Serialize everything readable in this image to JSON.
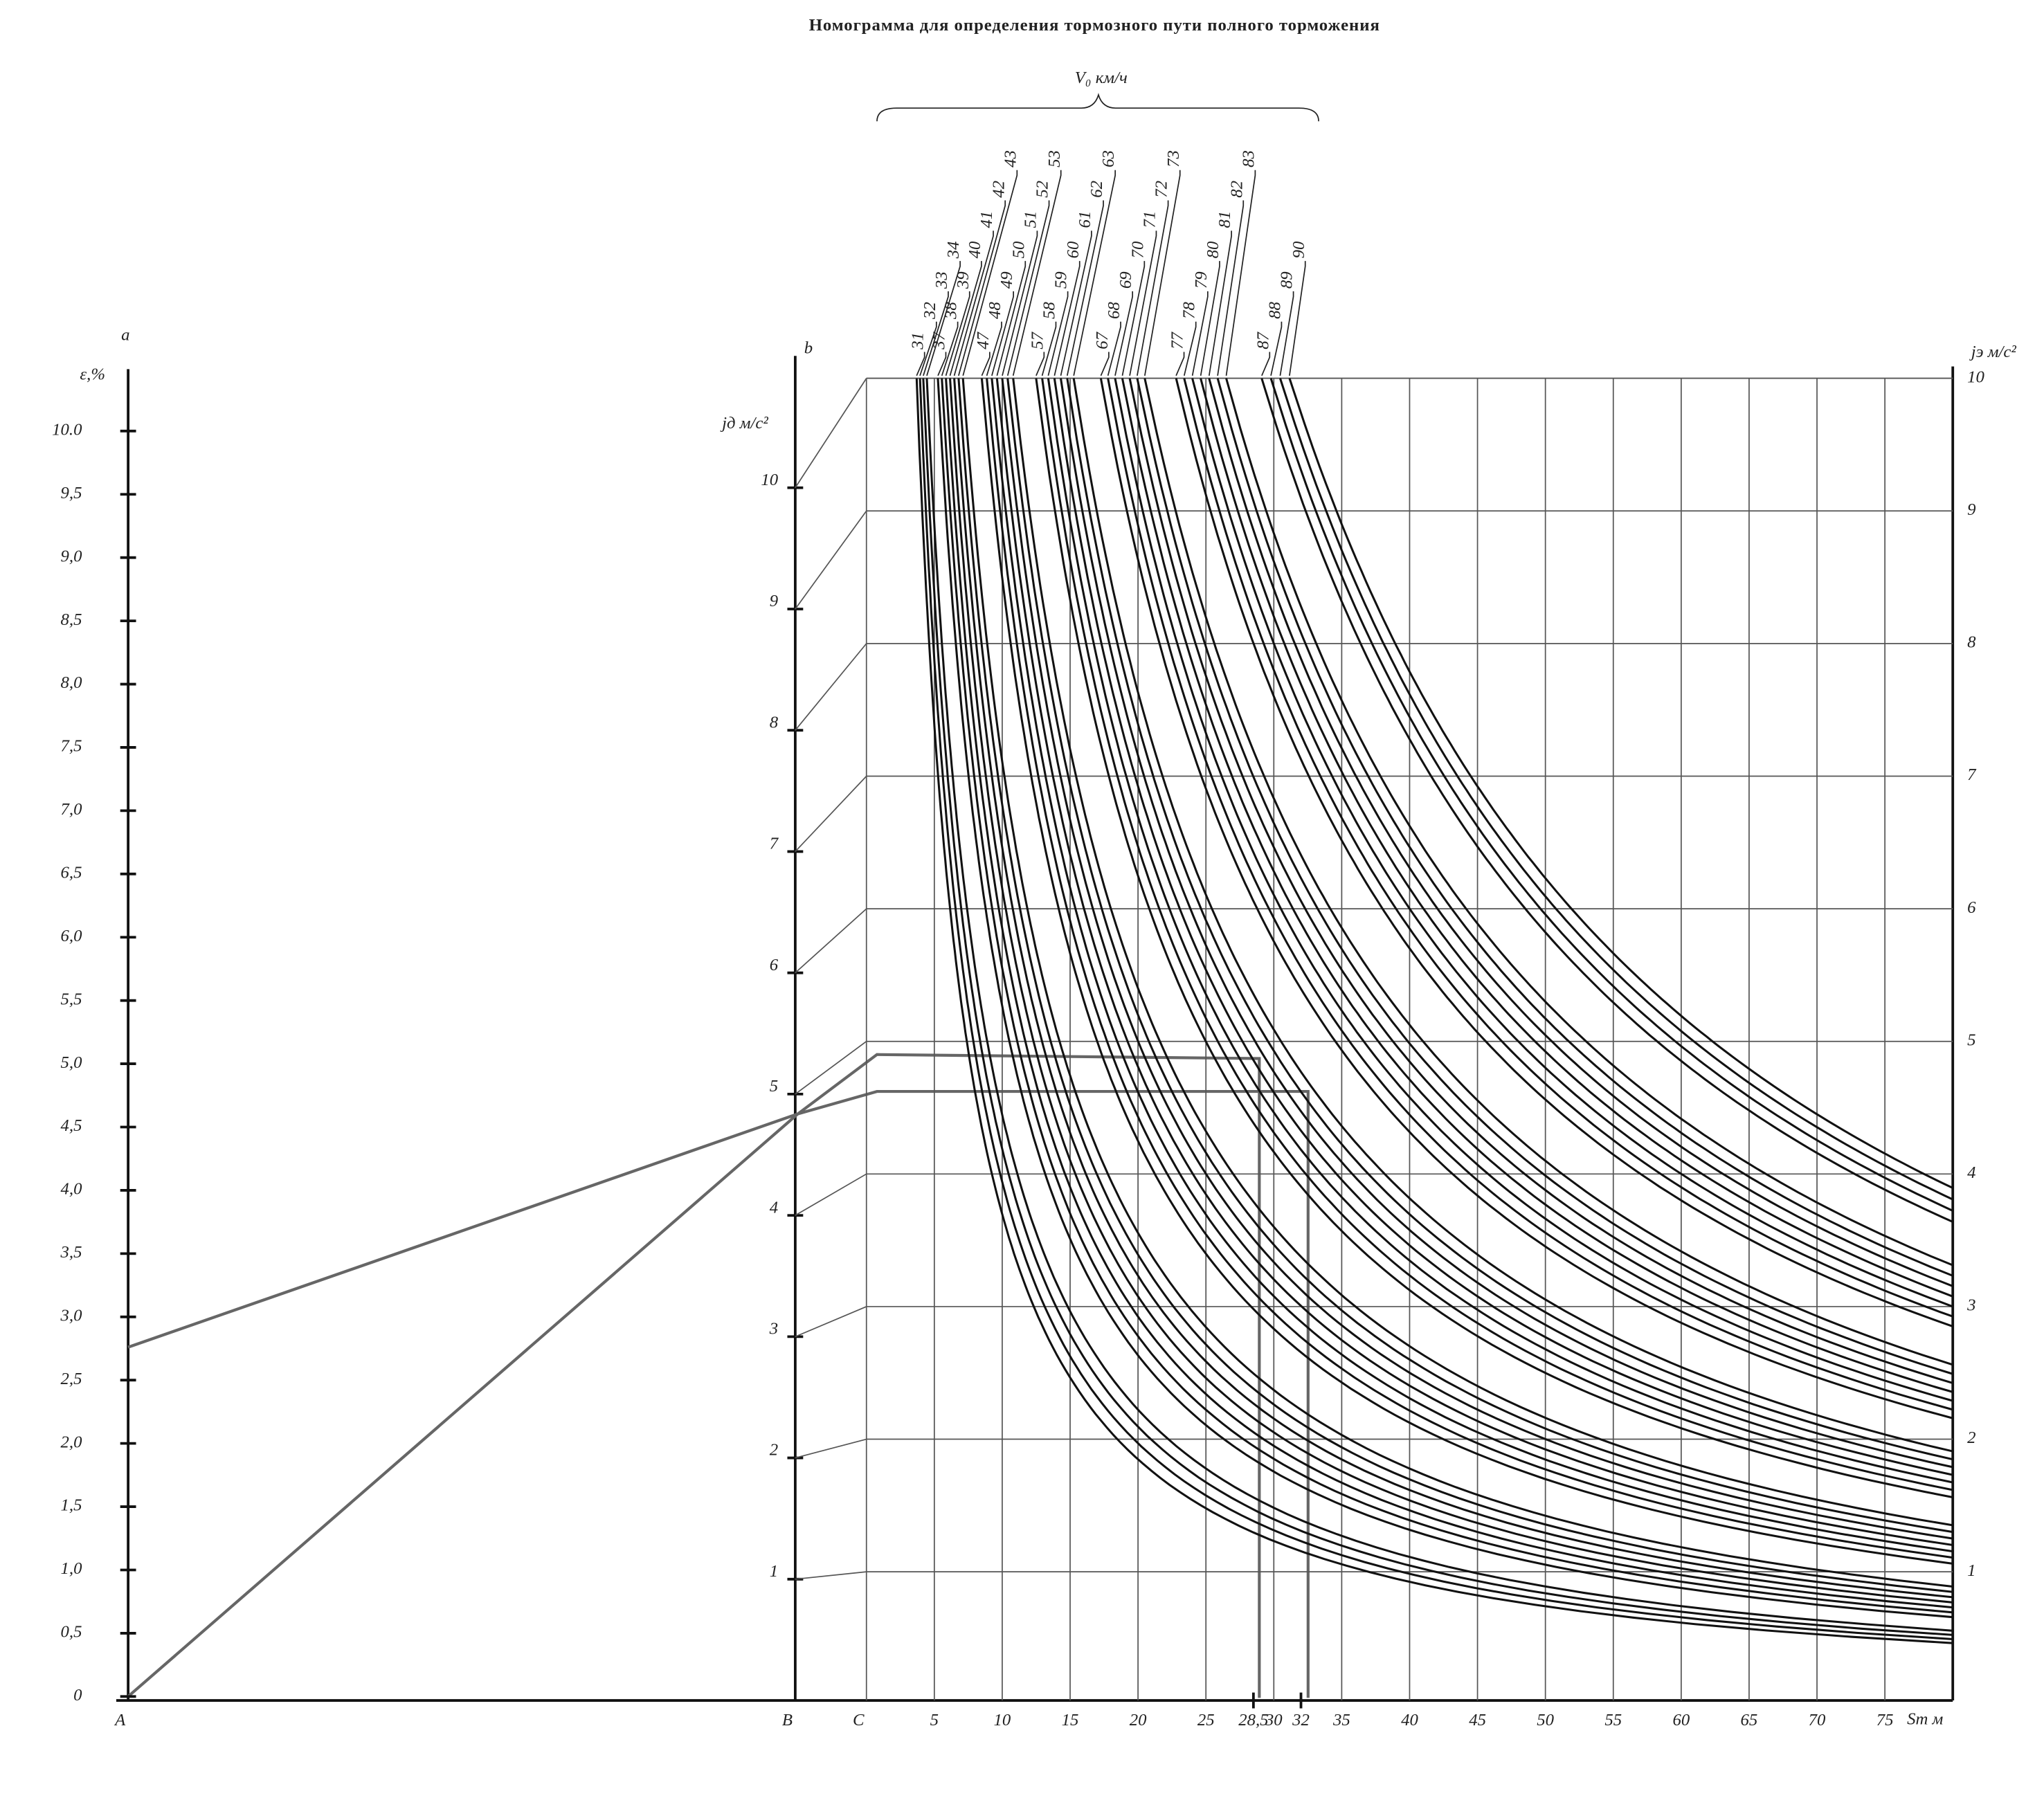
{
  "title": "Номограмма для определения тормозного пути полного торможения",
  "axis_a": {
    "name": "a",
    "label": "ε,%",
    "ticks": [
      0,
      {
        "value": 0.5,
        "label": "0,5"
      },
      {
        "value": 1,
        "label": "1,0"
      },
      {
        "value": 1.5,
        "label": "1,5"
      },
      {
        "value": 2,
        "label": "2,0"
      },
      {
        "value": 2.5,
        "label": "2,5"
      },
      {
        "value": 3,
        "label": "3,0"
      },
      {
        "value": 3.5,
        "label": "3,5"
      },
      {
        "value": 4,
        "label": "4,0"
      },
      {
        "value": 4.5,
        "label": "4,5"
      },
      {
        "value": 5,
        "label": "5,0"
      },
      {
        "value": 5.5,
        "label": "5,5"
      },
      {
        "value": 6,
        "label": "6,0"
      },
      {
        "value": 6.5,
        "label": "6,5"
      },
      {
        "value": 7,
        "label": "7,0"
      },
      {
        "value": 7.5,
        "label": "7,5"
      },
      {
        "value": 8,
        "label": "8,0"
      },
      {
        "value": 8.5,
        "label": "8,5"
      },
      {
        "value": 9,
        "label": "9,0"
      },
      {
        "value": 9.5,
        "label": "9,5"
      },
      {
        "value": 10,
        "label": "10.0"
      }
    ]
  },
  "axis_b": {
    "name": "b",
    "label": "jд м/с²",
    "ticks": [
      1,
      2,
      3,
      4,
      5,
      6,
      7,
      8,
      9,
      10
    ]
  },
  "axis_e": {
    "label": "jэ м/с²",
    "ticks": [
      1,
      2,
      3,
      4,
      5,
      6,
      7,
      8,
      9,
      10
    ]
  },
  "axis_s": {
    "label": "Sт м",
    "ticks": [
      5,
      10,
      15,
      20,
      25,
      {
        "value": 28.5,
        "label": "28,5"
      },
      30,
      32,
      35,
      40,
      45,
      50,
      55,
      60,
      65,
      70,
      75
    ]
  },
  "points": [
    "A",
    "B",
    "C"
  ],
  "curves": {
    "label": "V₀ км/ч",
    "speeds": [
      31,
      32,
      33,
      34,
      37,
      38,
      39,
      40,
      41,
      42,
      43,
      47,
      48,
      49,
      50,
      51,
      52,
      53,
      57,
      58,
      59,
      60,
      61,
      62,
      63,
      67,
      68,
      69,
      70,
      71,
      72,
      73,
      77,
      78,
      79,
      80,
      81,
      82,
      83,
      87,
      88,
      89,
      90
    ]
  }
}
